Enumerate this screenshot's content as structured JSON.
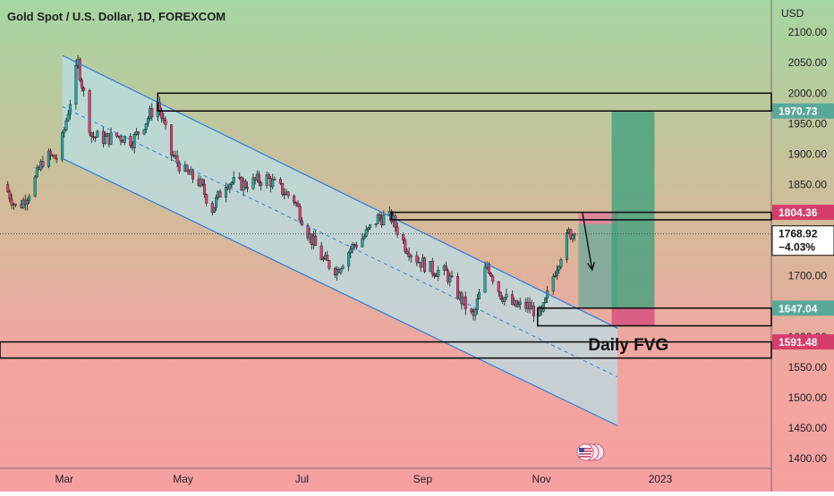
{
  "chart_data": {
    "type": "candlestick",
    "title": "Gold Spot / U.S. Dollar, 1D, FOREXCOM",
    "currency_label": "USD",
    "y_axis": {
      "ticks": [
        2100,
        2050,
        2000,
        1950,
        1900,
        1850,
        1800,
        1750,
        1700,
        1650,
        1600,
        1550,
        1500,
        1450,
        1400
      ],
      "range": [
        1384,
        2153
      ]
    },
    "x_axis": {
      "ticks": [
        {
          "label": "Mar",
          "date": "2022-03-01"
        },
        {
          "label": "May",
          "date": "2022-05-01"
        },
        {
          "label": "Jul",
          "date": "2022-07-01"
        },
        {
          "label": "Sep",
          "date": "2022-09-01"
        },
        {
          "label": "Nov",
          "date": "2022-11-01"
        },
        {
          "label": "2023",
          "date": "2023-01-01"
        }
      ],
      "range": [
        "2022-01-27",
        "2023-02-27"
      ]
    },
    "series": [
      {
        "points": [
          {
            "date": "2022-01-29",
            "close": 1850
          },
          {
            "date": "2022-02-05",
            "close": 1808
          },
          {
            "date": "2022-02-12",
            "close": 1843
          },
          {
            "date": "2022-02-19",
            "close": 1897
          },
          {
            "date": "2022-02-26",
            "close": 1893
          },
          {
            "date": "2022-03-08",
            "close": 2050
          },
          {
            "date": "2022-03-15",
            "close": 1930
          },
          {
            "date": "2022-03-22",
            "close": 1925
          },
          {
            "date": "2022-03-29",
            "close": 1930
          },
          {
            "date": "2022-04-05",
            "close": 1922
          },
          {
            "date": "2022-04-12",
            "close": 1955
          },
          {
            "date": "2022-04-18",
            "close": 1985
          },
          {
            "date": "2022-04-25",
            "close": 1900
          },
          {
            "date": "2022-05-02",
            "close": 1870
          },
          {
            "date": "2022-05-09",
            "close": 1855
          },
          {
            "date": "2022-05-16",
            "close": 1810
          },
          {
            "date": "2022-05-23",
            "close": 1855
          },
          {
            "date": "2022-06-01",
            "close": 1850
          },
          {
            "date": "2022-06-13",
            "close": 1860
          },
          {
            "date": "2022-06-27",
            "close": 1825
          },
          {
            "date": "2022-07-05",
            "close": 1765
          },
          {
            "date": "2022-07-12",
            "close": 1725
          },
          {
            "date": "2022-07-19",
            "close": 1710
          },
          {
            "date": "2022-07-26",
            "close": 1745
          },
          {
            "date": "2022-08-02",
            "close": 1765
          },
          {
            "date": "2022-08-09",
            "close": 1795
          },
          {
            "date": "2022-08-16",
            "close": 1795
          },
          {
            "date": "2022-08-23",
            "close": 1750
          },
          {
            "date": "2022-08-30",
            "close": 1725
          },
          {
            "date": "2022-09-06",
            "close": 1710
          },
          {
            "date": "2022-09-13",
            "close": 1705
          },
          {
            "date": "2022-09-20",
            "close": 1665
          },
          {
            "date": "2022-09-27",
            "close": 1630
          },
          {
            "date": "2022-10-04",
            "close": 1720
          },
          {
            "date": "2022-10-11",
            "close": 1670
          },
          {
            "date": "2022-10-18",
            "close": 1650
          },
          {
            "date": "2022-10-25",
            "close": 1650
          },
          {
            "date": "2022-11-01",
            "close": 1635
          },
          {
            "date": "2022-11-08",
            "close": 1710
          },
          {
            "date": "2022-11-15",
            "close": 1770
          },
          {
            "date": "2022-11-18",
            "close": 1768.92
          }
        ]
      }
    ],
    "price_labels": [
      {
        "label": "1970.73",
        "value": 1970.73,
        "style": "teal"
      },
      {
        "label": "1804.36",
        "value": 1804.36,
        "style": "pink"
      },
      {
        "label": "1768.92",
        "value": 1768.92,
        "change": "−4.03%",
        "style": "current"
      },
      {
        "label": "1647.04",
        "value": 1647.04,
        "style": "teal"
      },
      {
        "label": "1591.48",
        "value": 1591.48,
        "style": "pink"
      }
    ],
    "annotations": [
      {
        "text": "Daily FVG",
        "date": "2022-11-25",
        "value": 1578
      }
    ],
    "drawings": {
      "channel": {
        "upper": [
          {
            "date": "2022-02-28",
            "value": 2062
          },
          {
            "date": "2022-12-10",
            "value": 1614
          }
        ],
        "lower": [
          {
            "date": "2022-02-28",
            "value": 1893
          },
          {
            "date": "2022-12-10",
            "value": 1454
          }
        ],
        "mid_dashed": [
          {
            "date": "2022-02-28",
            "value": 1978
          },
          {
            "date": "2022-12-10",
            "value": 1534
          }
        ],
        "fill_left": [
          {
            "date": "2022-02-28",
            "value": 2062
          },
          {
            "date": "2022-02-28",
            "value": 1893
          }
        ],
        "fill_right_value": [
          1614,
          1454
        ]
      },
      "resistance_box_top": {
        "from": "2022-04-18",
        "to": "2023-02-27",
        "high": 2000,
        "low": 1970.73
      },
      "resistance_box_mid": {
        "from": "2022-08-16",
        "to": "2023-02-27",
        "high": 1804.36,
        "low": 1792
      },
      "support_box": {
        "from": "2022-10-30",
        "to": "2023-02-27",
        "high": 1647.04,
        "low": 1618
      },
      "fvg_box": {
        "from": "2022-01-27",
        "to": "2023-02-27",
        "high": 1591.48,
        "low": 1565
      },
      "short_position": {
        "from": "2022-11-20",
        "to": "2022-12-10",
        "stop": 1804.36,
        "entry": 1785,
        "target": 1647.04
      },
      "long_position": {
        "from": "2022-12-07",
        "to": "2022-12-29",
        "stop": 1618,
        "entry": 1647.04,
        "target": 1970.73
      },
      "arrow": [
        {
          "date": "2022-11-22",
          "value": 1804
        },
        {
          "date": "2022-11-27",
          "value": 1710
        }
      ],
      "current_price_dotted": 1768.92
    },
    "colors": {
      "up": "#26a69a",
      "down": "#e03d6f",
      "channel_line": "#2f7fe0",
      "channel_fill": "#b9dde6",
      "box_line": "#111111",
      "teal_label": "#5aa89a",
      "pink_label": "#d63d6b",
      "bg_top": "#a8d5a0",
      "bg_mid": "#d8b59a",
      "bg_bottom": "#f4a0a0"
    }
  }
}
